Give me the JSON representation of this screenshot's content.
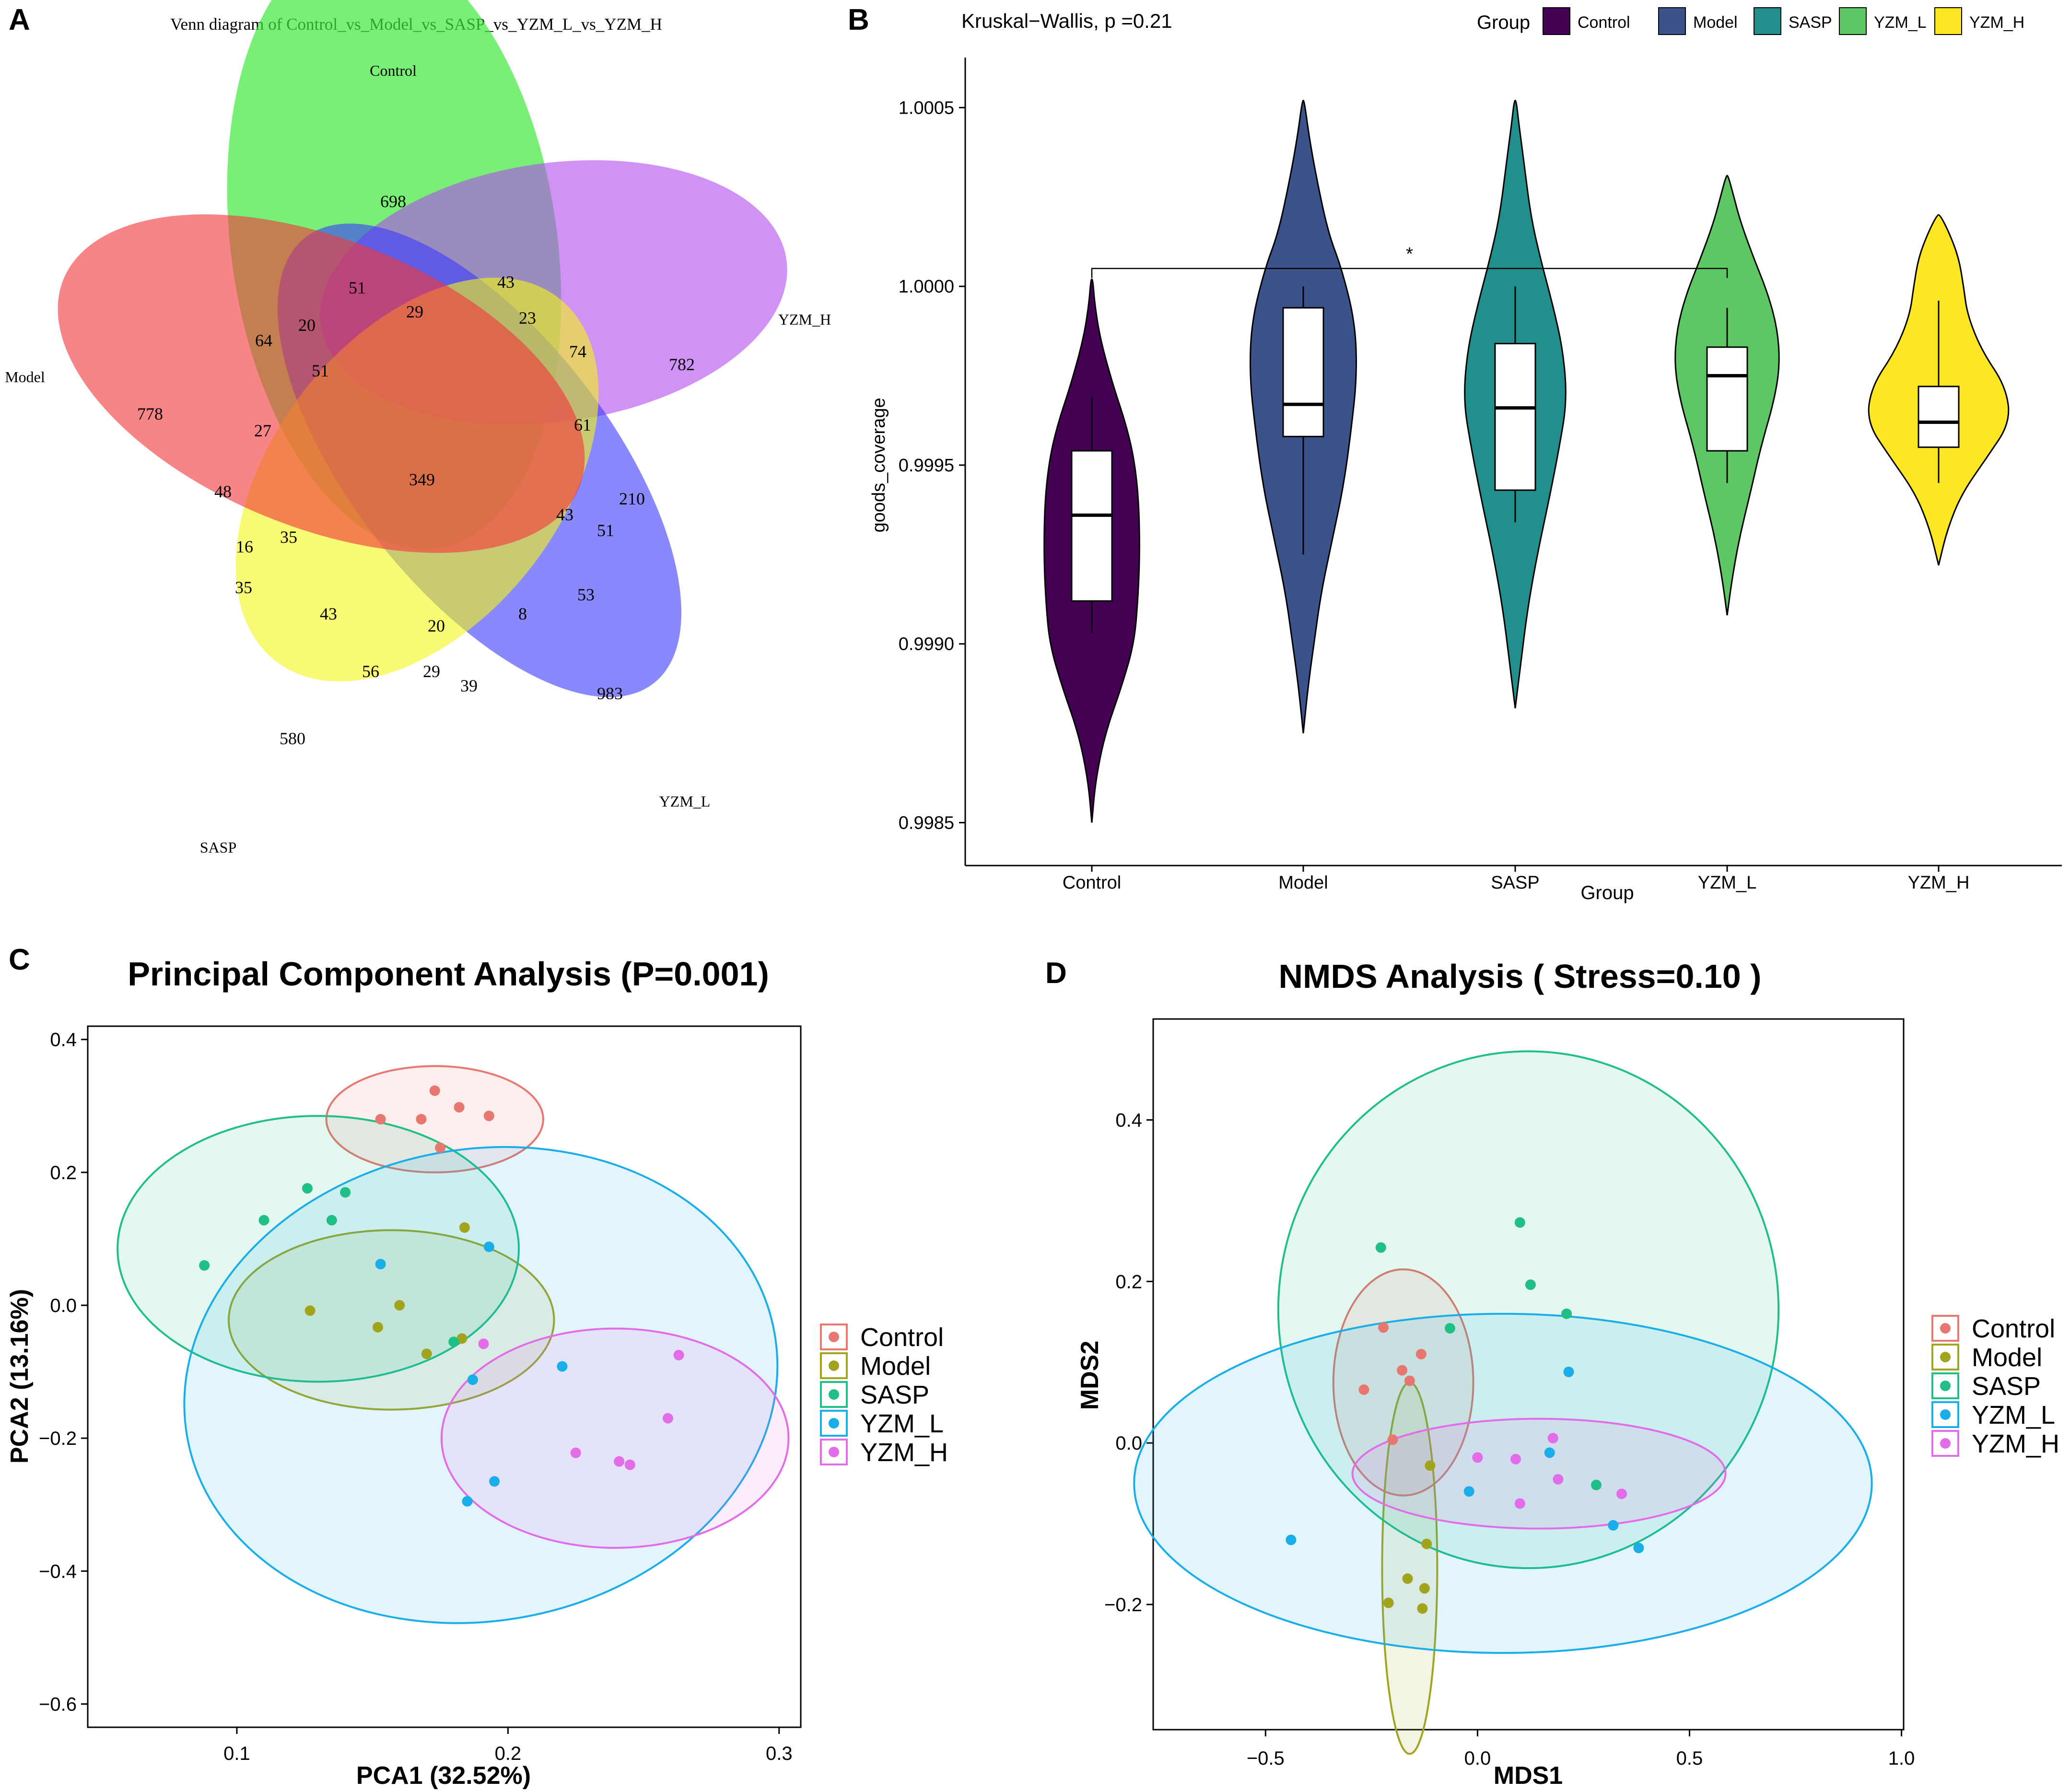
{
  "panel_letters": {
    "a": "A",
    "b": "B",
    "c": "C",
    "d": "D"
  },
  "colors": {
    "control_violin": "#440154",
    "model_violin": "#3b528b",
    "sasp_violin": "#21908c",
    "yzml_violin": "#5dc863",
    "yzmh_violin": "#fde725",
    "control_pt": "#e8776f",
    "model_pt": "#a3a41e",
    "sasp_pt": "#1fbf86",
    "yzml_pt": "#19aee9",
    "yzmh_pt": "#e36ce8"
  },
  "chart_data": [
    {
      "id": "venn",
      "type": "venn",
      "title": "Venn diagram of Control_vs_Model_vs_SASP_vs_YZM_L_vs_YZM_H",
      "sets": [
        {
          "name": "Control",
          "color": "#3ee83a",
          "unique": 698
        },
        {
          "name": "YZM_H",
          "color": "#b349ee",
          "unique": 782
        },
        {
          "name": "YZM_L",
          "color": "#3b3bfb",
          "unique": 983
        },
        {
          "name": "SASP",
          "color": "#f3f618",
          "unique": 580
        },
        {
          "name": "Model",
          "color": "#f2393c",
          "unique": 778
        }
      ],
      "region_counts": [
        "698",
        "782",
        "983",
        "580",
        "778",
        "51",
        "43",
        "29",
        "20",
        "23",
        "64",
        "51",
        "74",
        "27",
        "61",
        "349",
        "48",
        "210",
        "43",
        "16",
        "35",
        "51",
        "35",
        "53",
        "43",
        "20",
        "8",
        "56",
        "29",
        "39"
      ]
    },
    {
      "id": "violin",
      "type": "violin",
      "title": "Kruskal−Wallis, p =0.21",
      "xlabel": "Group",
      "ylabel": "goods_coverage",
      "legend_title": "Group",
      "categories": [
        "Control",
        "Model",
        "SASP",
        "YZM_L",
        "YZM_H"
      ],
      "yticks": [
        "1.0005",
        "1.0000",
        "0.9995",
        "0.9990",
        "0.9985"
      ],
      "ytick_values": [
        1.0005,
        1.0,
        0.9995,
        0.999,
        0.9985
      ],
      "ylim": [
        0.99838,
        1.00064
      ],
      "boxes": [
        {
          "group": "Control",
          "whisker_low": 0.99903,
          "q1": 0.99912,
          "median": 0.99936,
          "q3": 0.99954,
          "whisker_high": 0.99969
        },
        {
          "group": "Model",
          "whisker_low": 0.99925,
          "q1": 0.99958,
          "median": 0.99967,
          "q3": 0.99994,
          "whisker_high": 1.0
        },
        {
          "group": "SASP",
          "whisker_low": 0.99934,
          "q1": 0.99943,
          "median": 0.99966,
          "q3": 0.99984,
          "whisker_high": 1.0
        },
        {
          "group": "YZM_L",
          "whisker_low": 0.99945,
          "q1": 0.99954,
          "median": 0.99975,
          "q3": 0.99983,
          "whisker_high": 0.99994
        },
        {
          "group": "YZM_H",
          "whisker_low": 0.99945,
          "q1": 0.99955,
          "median": 0.99962,
          "q3": 0.99972,
          "whisker_high": 0.99996
        }
      ],
      "significance": {
        "from": "Control",
        "to": "YZM_L",
        "y": 1.00005,
        "label": "*"
      }
    },
    {
      "id": "pca",
      "type": "scatter",
      "title": "Principal Component Analysis (P=0.001)",
      "xlabel": "PCA1 (32.52%)",
      "ylabel": "PCA2 (13.16%)",
      "xlim": [
        0.045,
        0.308
      ],
      "ylim": [
        -0.635,
        0.42
      ],
      "xticks": [
        "0.1",
        "0.2",
        "0.3"
      ],
      "xtick_values": [
        0.1,
        0.2,
        0.3
      ],
      "yticks": [
        "0.4",
        "0.2",
        "0.0",
        "−0.2",
        "−0.4",
        "−0.6"
      ],
      "ytick_values": [
        0.4,
        0.2,
        0.0,
        -0.2,
        -0.4,
        -0.6
      ],
      "legend": [
        "Control",
        "Model",
        "SASP",
        "YZM_L",
        "YZM_H"
      ],
      "series": [
        {
          "name": "Control",
          "points": [
            [
              0.153,
              0.28
            ],
            [
              0.168,
              0.28
            ],
            [
              0.173,
              0.323
            ],
            [
              0.182,
              0.298
            ],
            [
              0.193,
              0.285
            ],
            [
              0.175,
              0.237
            ]
          ],
          "ellipse": {
            "cx": 0.173,
            "cy": 0.28,
            "rx": 0.04,
            "ry": 0.08,
            "angle": 0
          }
        },
        {
          "name": "Model",
          "points": [
            [
              0.127,
              -0.008
            ],
            [
              0.152,
              -0.033
            ],
            [
              0.16,
              0.0
            ],
            [
              0.17,
              -0.073
            ],
            [
              0.183,
              -0.05
            ],
            [
              0.184,
              0.117
            ]
          ],
          "ellipse": {
            "cx": 0.157,
            "cy": -0.022,
            "rx": 0.06,
            "ry": 0.135,
            "angle": 0
          }
        },
        {
          "name": "SASP",
          "points": [
            [
              0.088,
              0.06
            ],
            [
              0.11,
              0.128
            ],
            [
              0.126,
              0.176
            ],
            [
              0.135,
              0.128
            ],
            [
              0.14,
              0.17
            ],
            [
              0.18,
              -0.055
            ]
          ],
          "ellipse": {
            "cx": 0.13,
            "cy": 0.085,
            "rx": 0.074,
            "ry": 0.2,
            "angle": 0
          }
        },
        {
          "name": "YZM_L",
          "points": [
            [
              0.153,
              0.062
            ],
            [
              0.193,
              0.088
            ],
            [
              0.187,
              -0.112
            ],
            [
              0.22,
              -0.092
            ],
            [
              0.195,
              -0.265
            ],
            [
              0.185,
              -0.295
            ]
          ],
          "ellipse": {
            "cx": 0.19,
            "cy": -0.12,
            "rx": 0.11,
            "ry": 0.355,
            "angle": 10
          }
        },
        {
          "name": "YZM_H",
          "points": [
            [
              0.191,
              -0.058
            ],
            [
              0.263,
              -0.075
            ],
            [
              0.259,
              -0.17
            ],
            [
              0.225,
              -0.222
            ],
            [
              0.241,
              -0.235
            ],
            [
              0.245,
              -0.24
            ]
          ],
          "ellipse": {
            "cx": 0.2395,
            "cy": -0.2,
            "rx": 0.064,
            "ry": 0.165,
            "angle": 0
          }
        }
      ]
    },
    {
      "id": "nmds",
      "type": "scatter",
      "title": "NMDS Analysis ( Stress=0.10 )",
      "xlabel": "MDS1",
      "ylabel": "MDS2",
      "xlim": [
        -0.765,
        1.005
      ],
      "ylim": [
        -0.355,
        0.525
      ],
      "xticks": [
        "−0.5",
        "0.0",
        "0.5",
        "1.0"
      ],
      "xtick_values": [
        -0.5,
        0.0,
        0.5,
        1.0
      ],
      "yticks": [
        "0.4",
        "0.2",
        "0.0",
        "−0.2"
      ],
      "ytick_values": [
        0.4,
        0.2,
        0.0,
        -0.2
      ],
      "legend": [
        "Control",
        "Model",
        "SASP",
        "YZM_L",
        "YZM_H"
      ],
      "series": [
        {
          "name": "Control",
          "points": [
            [
              -0.268,
              0.066
            ],
            [
              -0.222,
              0.143
            ],
            [
              -0.178,
              0.09
            ],
            [
              -0.16,
              0.077
            ],
            [
              -0.133,
              0.11
            ],
            [
              -0.2,
              0.004
            ]
          ],
          "ellipse": {
            "cx": -0.175,
            "cy": 0.075,
            "rx": 0.165,
            "ry": 0.14,
            "angle": 0
          }
        },
        {
          "name": "Model",
          "points": [
            [
              -0.21,
              -0.198
            ],
            [
              -0.165,
              -0.168
            ],
            [
              -0.13,
              -0.205
            ],
            [
              -0.125,
              -0.18
            ],
            [
              -0.12,
              -0.125
            ],
            [
              -0.112,
              -0.028
            ]
          ],
          "ellipse": {
            "cx": -0.16,
            "cy": -0.155,
            "rx": 0.065,
            "ry": 0.23,
            "angle": 0
          }
        },
        {
          "name": "SASP",
          "points": [
            [
              -0.228,
              0.242
            ],
            [
              0.1,
              0.273
            ],
            [
              0.125,
              0.196
            ],
            [
              0.21,
              0.16
            ],
            [
              -0.065,
              0.142
            ],
            [
              0.28,
              -0.052
            ]
          ],
          "ellipse": {
            "cx": 0.12,
            "cy": 0.165,
            "rx": 0.59,
            "ry": 0.32,
            "angle": 0
          }
        },
        {
          "name": "YZM_L",
          "points": [
            [
              -0.44,
              -0.12
            ],
            [
              0.215,
              0.088
            ],
            [
              -0.02,
              -0.06
            ],
            [
              0.17,
              -0.012
            ],
            [
              0.32,
              -0.102
            ],
            [
              0.38,
              -0.13
            ]
          ],
          "ellipse": {
            "cx": 0.06,
            "cy": -0.05,
            "rx": 0.87,
            "ry": 0.21,
            "angle": 0
          }
        },
        {
          "name": "YZM_H",
          "points": [
            [
              0.0,
              -0.018
            ],
            [
              0.1,
              -0.075
            ],
            [
              0.09,
              -0.02
            ],
            [
              0.178,
              0.006
            ],
            [
              0.19,
              -0.045
            ],
            [
              0.34,
              -0.063
            ]
          ],
          "ellipse": {
            "cx": 0.145,
            "cy": -0.038,
            "rx": 0.44,
            "ry": 0.068,
            "angle": 0
          }
        }
      ]
    }
  ]
}
